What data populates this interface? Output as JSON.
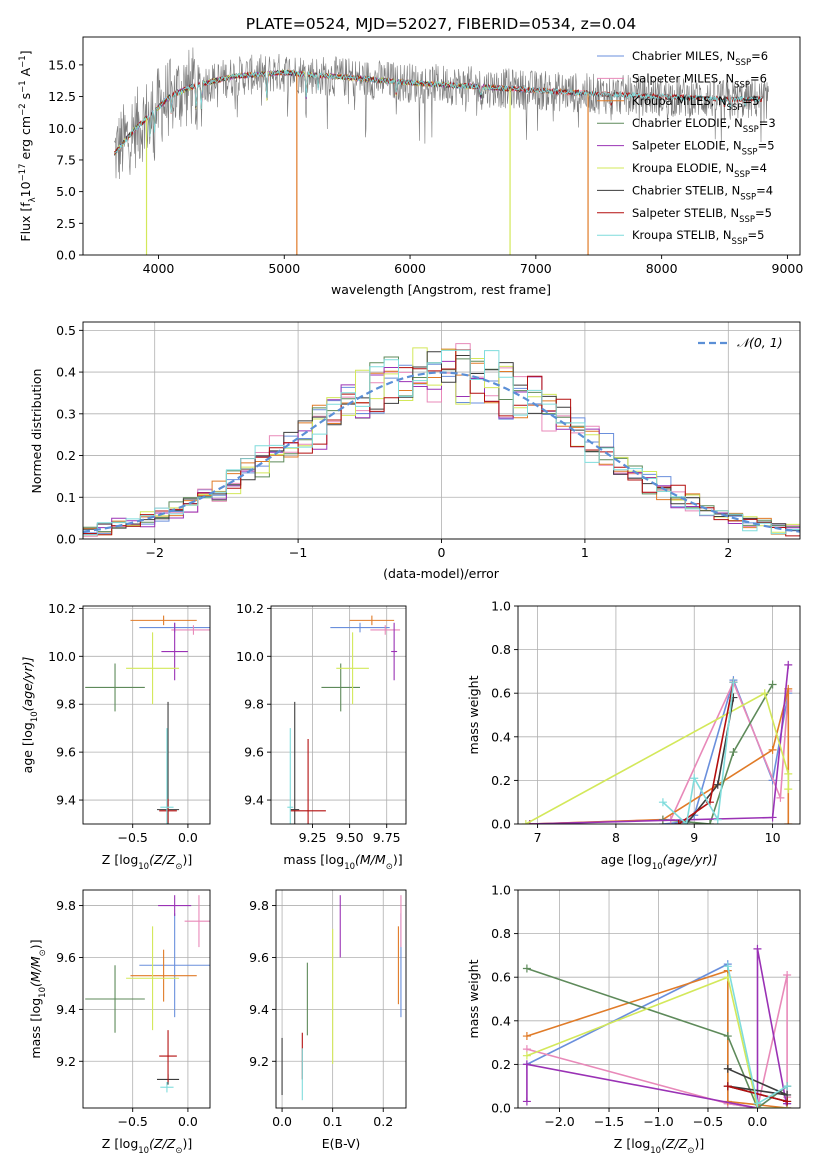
{
  "title": "PLATE=0524, MJD=52027, FIBERID=0534, z=0.04",
  "colors": {
    "Chabrier MILES": "#6a8fdc",
    "Salpeter MILES": "#e889b9",
    "Kroupa MILES": "#e07b28",
    "Chabrier ELODIE": "#5e8a5a",
    "Salpeter ELODIE": "#9a32b5",
    "Kroupa ELODIE": "#d3e85a",
    "Chabrier STELIB": "#3c3c3c",
    "Salpeter STELIB": "#b30f0f",
    "Kroupa STELIB": "#7fdcdc",
    "gaussian": "#5b8fd6",
    "data": "#7a7a7a"
  },
  "chart_data": [
    {
      "id": "spectrum",
      "type": "line",
      "title": "PLATE=0524, MJD=52027, FIBERID=0534, z=0.04",
      "xlabel": "wavelength [Angstrom, rest frame]",
      "ylabel_main": "Flux [f",
      "ylabel_sub": "λ",
      "ylabel_rest": "10",
      "ylabel_sup1": "−17",
      "ylabel_mid": " erg cm",
      "ylabel_sup2": "−2",
      "ylabel_mid2": " s",
      "ylabel_sup3": "−1",
      "ylabel_end": " A",
      "ylabel_sup4": "−1",
      "ylabel_close": "]",
      "xlim": [
        3400,
        9100
      ],
      "ylim": [
        0,
        17.2
      ],
      "xticks": [
        4000,
        5000,
        6000,
        7000,
        8000,
        9000
      ],
      "yticks": [
        0.0,
        2.5,
        5.0,
        7.5,
        10.0,
        12.5,
        15.0
      ],
      "ytick_labels": [
        "0.0",
        "2.5",
        "5.0",
        "7.5",
        "10.0",
        "12.5",
        "15.0"
      ],
      "grid": false,
      "legend_position": "upper-right",
      "legend": [
        {
          "label": "Chabrier MILES",
          "sub": "SSP",
          "n": "6"
        },
        {
          "label": "Salpeter MILES",
          "sub": "SSP",
          "n": "6"
        },
        {
          "label": "Kroupa MILES",
          "sub": "SSP",
          "n": "5"
        },
        {
          "label": "Chabrier ELODIE",
          "sub": "SSP",
          "n": "3"
        },
        {
          "label": "Salpeter ELODIE",
          "sub": "SSP",
          "n": "5"
        },
        {
          "label": "Kroupa ELODIE",
          "sub": "SSP",
          "n": "4"
        },
        {
          "label": "Chabrier STELIB",
          "sub": "SSP",
          "n": "4"
        },
        {
          "label": "Salpeter STELIB",
          "sub": "SSP",
          "n": "5"
        },
        {
          "label": "Kroupa STELIB",
          "sub": "SSP",
          "n": "5"
        }
      ],
      "continuum": [
        [
          3650,
          8.0
        ],
        [
          3800,
          9.8
        ],
        [
          3950,
          11.2
        ],
        [
          4100,
          12.6
        ],
        [
          4300,
          13.4
        ],
        [
          4600,
          14.1
        ],
        [
          5000,
          14.4
        ],
        [
          5500,
          14.0
        ],
        [
          6000,
          13.6
        ],
        [
          6500,
          13.3
        ],
        [
          7000,
          13.0
        ],
        [
          7500,
          12.7
        ],
        [
          8000,
          12.5
        ],
        [
          8500,
          12.3
        ],
        [
          8800,
          12.3
        ]
      ],
      "absorptions": [
        [
          3934,
          9.2
        ],
        [
          3969,
          9.8
        ],
        [
          4102,
          11.2
        ],
        [
          4300,
          11.4
        ],
        [
          4341,
          11.6
        ],
        [
          4861,
          12.3
        ],
        [
          5175,
          12.4
        ],
        [
          5270,
          13.2
        ],
        [
          5890,
          12.6
        ],
        [
          6563,
          12.4
        ],
        [
          7600,
          11.8
        ],
        [
          8500,
          11.7
        ],
        [
          8542,
          11.6
        ],
        [
          8662,
          11.7
        ]
      ],
      "model_drops": [
        {
          "model": "Kroupa ELODIE",
          "x": 3905
        },
        {
          "model": "Kroupa MILES",
          "x": 5100
        },
        {
          "model": "Kroupa ELODIE",
          "x": 6795
        },
        {
          "model": "Kroupa MILES",
          "x": 7415
        }
      ],
      "models_end": {
        "Chabrier MILES": 7420,
        "Salpeter MILES": 7420,
        "Kroupa MILES": 7420,
        "Chabrier ELODIE": 6800,
        "Salpeter ELODIE": 6800,
        "Kroupa ELODIE": 6800,
        "Chabrier STELIB": 8800,
        "Salpeter STELIB": 8800,
        "Kroupa STELIB": 8800
      }
    },
    {
      "id": "residuals",
      "type": "histogram",
      "xlabel": "(data-model)/error",
      "ylabel": "Normed distribution",
      "xlim": [
        -2.5,
        2.5
      ],
      "ylim": [
        0,
        0.52
      ],
      "xticks": [
        -2,
        -1,
        0,
        1,
        2
      ],
      "xtick_labels": [
        "−2",
        "−1",
        "0",
        "1",
        "2"
      ],
      "yticks": [
        0.0,
        0.1,
        0.2,
        0.3,
        0.4,
        0.5
      ],
      "ytick_labels": [
        "0.0",
        "0.1",
        "0.2",
        "0.3",
        "0.4",
        "0.5"
      ],
      "grid": true,
      "legend_position": "upper-right",
      "gaussian_label": "𝒩(0, 1)",
      "bins": 50
    },
    {
      "id": "age-vs-Z",
      "type": "scatter",
      "xlabel_main": "Z [log",
      "xlabel_sub": "10",
      "xlabel_end": "(Z/Z",
      "xlabel_sun": "⊙",
      "xlabel_close": ")]",
      "ylabel_main": "age  [log",
      "ylabel_sub": "10",
      "ylabel_end": "(age/yr)]",
      "xlim": [
        -0.95,
        0.2
      ],
      "ylim": [
        9.3,
        10.21
      ],
      "xticks": [
        -0.5,
        0.0
      ],
      "xtick_labels": [
        "−0.5",
        "0.0"
      ],
      "yticks": [
        9.4,
        9.6,
        9.8,
        10.0,
        10.2
      ],
      "ytick_labels": [
        "9.4",
        "9.6",
        "9.8",
        "10.0",
        "10.2"
      ],
      "grid": true,
      "points": [
        {
          "model": "Chabrier MILES",
          "x": -0.12,
          "xerr": 0.32,
          "y": 10.12,
          "yerr": 0.02
        },
        {
          "model": "Salpeter MILES",
          "x": 0.05,
          "xerr": 0.2,
          "y": 10.11,
          "yerr": 0.02
        },
        {
          "model": "Kroupa MILES",
          "x": -0.22,
          "xerr": 0.3,
          "y": 10.15,
          "yerr": 0.02
        },
        {
          "model": "Chabrier ELODIE",
          "x": -0.66,
          "xerr": 0.27,
          "y": 9.87,
          "yerr": 0.1
        },
        {
          "model": "Salpeter ELODIE",
          "x": -0.12,
          "xerr": 0.12,
          "y": 10.02,
          "yerr": 0.12
        },
        {
          "model": "Kroupa ELODIE",
          "x": -0.32,
          "xerr": 0.24,
          "y": 9.95,
          "yerr": 0.15
        },
        {
          "model": "Chabrier STELIB",
          "x": -0.18,
          "xerr": 0.1,
          "y": 9.36,
          "yerr": 0.45
        },
        {
          "model": "Salpeter STELIB",
          "x": -0.18,
          "xerr": 0.08,
          "y": 9.355,
          "yerr": 0.05
        },
        {
          "model": "Kroupa STELIB",
          "x": -0.19,
          "xerr": 0.06,
          "y": 9.37,
          "yerr": 0.33
        }
      ]
    },
    {
      "id": "age-vs-mass",
      "type": "scatter",
      "xlabel_main": "mass [log",
      "xlabel_sub": "10",
      "xlabel_end": "(M/M",
      "xlabel_sun": "⊙",
      "xlabel_close": ")]",
      "xlim": [
        8.97,
        9.88
      ],
      "ylim": [
        9.3,
        10.21
      ],
      "xticks": [
        9.25,
        9.5,
        9.75
      ],
      "xtick_labels": [
        "9.25",
        "9.50",
        "9.75"
      ],
      "yticks": [
        9.4,
        9.6,
        9.8,
        10.0,
        10.2
      ],
      "ytick_labels": [
        "9.4",
        "9.6",
        "9.8",
        "10.0",
        "10.2"
      ],
      "grid": true,
      "points": [
        {
          "model": "Chabrier MILES",
          "x": 9.57,
          "xerr": 0.2,
          "y": 10.12,
          "yerr": 0.02
        },
        {
          "model": "Salpeter MILES",
          "x": 9.74,
          "xerr": 0.1,
          "y": 10.11,
          "yerr": 0.02
        },
        {
          "model": "Kroupa MILES",
          "x": 9.65,
          "xerr": 0.15,
          "y": 10.15,
          "yerr": 0.02
        },
        {
          "model": "Chabrier ELODIE",
          "x": 9.44,
          "xerr": 0.13,
          "y": 9.87,
          "yerr": 0.1
        },
        {
          "model": "Salpeter ELODIE",
          "x": 9.8,
          "xerr": 0.02,
          "y": 10.02,
          "yerr": 0.12
        },
        {
          "model": "Kroupa ELODIE",
          "x": 9.52,
          "xerr": 0.11,
          "y": 9.95,
          "yerr": 0.15
        },
        {
          "model": "Chabrier STELIB",
          "x": 9.13,
          "xerr": 0.03,
          "y": 9.36,
          "yerr": 0.45
        },
        {
          "model": "Salpeter STELIB",
          "x": 9.22,
          "xerr": 0.12,
          "y": 9.355,
          "yerr": 0.3
        },
        {
          "model": "Kroupa STELIB",
          "x": 9.1,
          "xerr": 0.02,
          "y": 9.37,
          "yerr": 0.33
        }
      ]
    },
    {
      "id": "mass-weight-vs-age",
      "type": "line",
      "xlabel_main": "age  [log",
      "xlabel_sub": "10",
      "xlabel_end": "(age/yr)]",
      "ylabel": "mass weight",
      "xlim": [
        6.75,
        10.35
      ],
      "ylim": [
        0,
        1.0
      ],
      "xticks": [
        7,
        8,
        9,
        10
      ],
      "xtick_labels": [
        "7",
        "8",
        "9",
        "10"
      ],
      "yticks": [
        0.0,
        0.2,
        0.4,
        0.6,
        0.8,
        1.0
      ],
      "ytick_labels": [
        "0.0",
        "0.2",
        "0.4",
        "0.6",
        "0.8",
        "1.0"
      ],
      "grid": true,
      "series": [
        {
          "model": "Chabrier MILES",
          "x": [
            8.6,
            8.9,
            9.0,
            9.5,
            10.0,
            10.2
          ],
          "y": [
            0.0,
            0.01,
            0.04,
            0.66,
            0.2,
            0.6
          ]
        },
        {
          "model": "Salpeter MILES",
          "x": [
            6.9,
            8.7,
            9.5,
            10.1,
            10.2
          ],
          "y": [
            0.0,
            0.02,
            0.65,
            0.12,
            0.61
          ]
        },
        {
          "model": "Kroupa MILES",
          "x": [
            6.9,
            8.6,
            10.0,
            10.2,
            10.2
          ],
          "y": [
            0.0,
            0.02,
            0.34,
            0.62,
            0.0
          ]
        },
        {
          "model": "Chabrier ELODIE",
          "x": [
            8.6,
            9.2,
            9.5,
            10.0
          ],
          "y": [
            0.02,
            0.0,
            0.33,
            0.64
          ]
        },
        {
          "model": "Salpeter ELODIE",
          "x": [
            6.9,
            10.0,
            10.2
          ],
          "y": [
            0.0,
            0.03,
            0.73
          ]
        },
        {
          "model": "Kroupa ELODIE",
          "x": [
            6.85,
            9.9,
            10.2,
            10.2
          ],
          "y": [
            0.0,
            0.6,
            0.23,
            0.16
          ]
        },
        {
          "model": "Chabrier STELIB",
          "x": [
            8.9,
            9.3,
            9.5
          ],
          "y": [
            0.0,
            0.18,
            0.58
          ]
        },
        {
          "model": "Salpeter STELIB",
          "x": [
            8.8,
            9.2,
            9.5
          ],
          "y": [
            0.0,
            0.1,
            0.65
          ]
        },
        {
          "model": "Kroupa STELIB",
          "x": [
            8.6,
            8.9,
            9.0,
            9.3,
            9.5
          ],
          "y": [
            0.1,
            0.0,
            0.21,
            0.02,
            0.65
          ]
        }
      ]
    },
    {
      "id": "mass-vs-Z",
      "type": "scatter",
      "xlabel_main": "Z [log",
      "xlabel_sub": "10",
      "xlabel_end": "(Z/Z",
      "xlabel_sun": "⊙",
      "xlabel_close": ")]",
      "ylabel_main": "mass [log",
      "ylabel_sub": "10",
      "ylabel_end": "(M/M",
      "ylabel_sun": "⊙",
      "ylabel_close": ")]",
      "xlim": [
        -0.95,
        0.2
      ],
      "ylim": [
        9.02,
        9.86
      ],
      "xticks": [
        -0.5,
        0.0
      ],
      "xtick_labels": [
        "−0.5",
        "0.0"
      ],
      "yticks": [
        9.2,
        9.4,
        9.6,
        9.8
      ],
      "ytick_labels": [
        "9.2",
        "9.4",
        "9.6",
        "9.8"
      ],
      "grid": true,
      "points": [
        {
          "model": "Chabrier MILES",
          "x": -0.12,
          "xerr": 0.32,
          "y": 9.57,
          "yerr": 0.2
        },
        {
          "model": "Salpeter MILES",
          "x": 0.1,
          "xerr": 0.13,
          "y": 9.74,
          "yerr": 0.1
        },
        {
          "model": "Kroupa MILES",
          "x": -0.22,
          "xerr": 0.3,
          "y": 9.53,
          "yerr": 0.1
        },
        {
          "model": "Chabrier ELODIE",
          "x": -0.66,
          "xerr": 0.27,
          "y": 9.44,
          "yerr": 0.13
        },
        {
          "model": "Salpeter ELODIE",
          "x": -0.12,
          "xerr": 0.15,
          "y": 9.8,
          "yerr": 0.04
        },
        {
          "model": "Kroupa ELODIE",
          "x": -0.32,
          "xerr": 0.24,
          "y": 9.52,
          "yerr": 0.2
        },
        {
          "model": "Chabrier STELIB",
          "x": -0.18,
          "xerr": 0.1,
          "y": 9.13,
          "yerr": 0.02
        },
        {
          "model": "Salpeter STELIB",
          "x": -0.18,
          "xerr": 0.08,
          "y": 9.22,
          "yerr": 0.1
        },
        {
          "model": "Kroupa STELIB",
          "x": -0.19,
          "xerr": 0.06,
          "y": 9.1,
          "yerr": 0.02
        }
      ]
    },
    {
      "id": "mass-vs-ebv",
      "type": "scatter",
      "xlabel": "E(B-V)",
      "xlim": [
        -0.012,
        0.245
      ],
      "ylim": [
        9.02,
        9.86
      ],
      "xticks": [
        0.0,
        0.1,
        0.2
      ],
      "xtick_labels": [
        "0.0",
        "0.1",
        "0.2"
      ],
      "yticks": [
        9.2,
        9.4,
        9.6,
        9.8
      ],
      "ytick_labels": [
        "9.2",
        "9.4",
        "9.6",
        "9.8"
      ],
      "grid": true,
      "points": [
        {
          "model": "Chabrier MILES",
          "x": 0.235,
          "xerr": 0.0,
          "y": 9.57,
          "yerr": 0.2
        },
        {
          "model": "Salpeter MILES",
          "x": 0.235,
          "xerr": 0.0,
          "y": 9.74,
          "yerr": 0.1
        },
        {
          "model": "Kroupa MILES",
          "x": 0.23,
          "xerr": 0.0,
          "y": 9.57,
          "yerr": 0.15
        },
        {
          "model": "Chabrier ELODIE",
          "x": 0.05,
          "xerr": 0.0,
          "y": 9.44,
          "yerr": 0.14
        },
        {
          "model": "Salpeter ELODIE",
          "x": 0.115,
          "xerr": 0.0,
          "y": 9.72,
          "yerr": 0.12
        },
        {
          "model": "Kroupa ELODIE",
          "x": 0.1,
          "xerr": 0.0,
          "y": 9.45,
          "yerr": 0.26
        },
        {
          "model": "Chabrier STELIB",
          "x": 0.0,
          "xerr": 0.0,
          "y": 9.18,
          "yerr": 0.11
        },
        {
          "model": "Salpeter STELIB",
          "x": 0.04,
          "xerr": 0.0,
          "y": 9.22,
          "yerr": 0.09
        },
        {
          "model": "Kroupa STELIB",
          "x": 0.04,
          "xerr": 0.0,
          "y": 9.15,
          "yerr": 0.1
        }
      ]
    },
    {
      "id": "mass-weight-vs-Z",
      "type": "line",
      "xlabel_main": "Z [log",
      "xlabel_sub": "10",
      "xlabel_end": "(Z/Z",
      "xlabel_sun": "⊙",
      "xlabel_close": ")]",
      "ylabel": "mass weight",
      "xlim": [
        -2.42,
        0.43
      ],
      "ylim": [
        0,
        1.0
      ],
      "xticks": [
        -2.0,
        -1.5,
        -1.0,
        -0.5,
        0.0
      ],
      "xtick_labels": [
        "−2.0",
        "−1.5",
        "−1.0",
        "−0.5",
        "0.0"
      ],
      "yticks": [
        0.0,
        0.2,
        0.4,
        0.6,
        0.8,
        1.0
      ],
      "ytick_labels": [
        "0.0",
        "0.2",
        "0.4",
        "0.6",
        "0.8",
        "1.0"
      ],
      "grid": true,
      "series": [
        {
          "model": "Chabrier MILES",
          "x": [
            -2.33,
            -0.3,
            -0.3,
            0.0,
            0.3,
            0.3
          ],
          "y": [
            0.2,
            0.66,
            0.02,
            0.0,
            0.1,
            0.02
          ]
        },
        {
          "model": "Salpeter MILES",
          "x": [
            -2.33,
            -0.3,
            0.0,
            0.3,
            0.3
          ],
          "y": [
            0.27,
            0.02,
            0.0,
            0.61,
            0.05
          ]
        },
        {
          "model": "Kroupa MILES",
          "x": [
            -2.33,
            -0.3,
            -0.3,
            0.3
          ],
          "y": [
            0.33,
            0.63,
            0.03,
            0.0
          ]
        },
        {
          "model": "Chabrier ELODIE",
          "x": [
            -2.33,
            -0.3,
            0.0,
            0.3
          ],
          "y": [
            0.64,
            0.33,
            0.0,
            0.1
          ]
        },
        {
          "model": "Salpeter ELODIE",
          "x": [
            -2.33,
            -2.33,
            0.0,
            0.0,
            0.3,
            0.3
          ],
          "y": [
            0.03,
            0.2,
            0.0,
            0.73,
            0.0,
            0.02
          ]
        },
        {
          "model": "Kroupa ELODIE",
          "x": [
            -2.33,
            -0.3,
            0.0,
            0.3
          ],
          "y": [
            0.24,
            0.6,
            0.0,
            0.0
          ]
        },
        {
          "model": "Chabrier STELIB",
          "x": [
            -0.3,
            0.3,
            -0.3,
            0.3
          ],
          "y": [
            0.18,
            0.06,
            0.1,
            0.03
          ]
        },
        {
          "model": "Salpeter STELIB",
          "x": [
            -0.3,
            0.3
          ],
          "y": [
            0.1,
            0.03
          ]
        },
        {
          "model": "Kroupa STELIB",
          "x": [
            -0.3,
            0.0,
            0.3
          ],
          "y": [
            0.65,
            0.02,
            0.1
          ]
        }
      ]
    }
  ]
}
